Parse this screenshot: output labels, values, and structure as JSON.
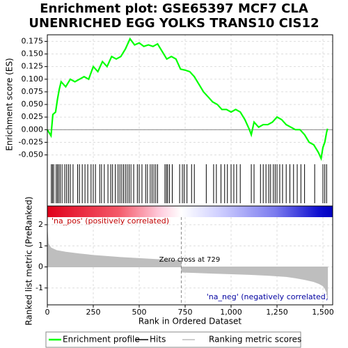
{
  "chart_data": {
    "type": "line",
    "title": [
      "Enrichment plot: GSE65397 MCF7 CLA",
      "UNENRICHED EGG YOLKS TRANS10 CIS12"
    ],
    "xlabel": "Rank in Ordered Dataset",
    "xlim": [
      0,
      1553
    ],
    "xticks": [
      0,
      250,
      500,
      750,
      {
        "value": 1000,
        "label": "1,000"
      },
      {
        "value": 1250,
        "label": "1,250"
      },
      {
        "value": 1500,
        "label": "1,500"
      }
    ],
    "grid": true,
    "es": {
      "ylabel": "Enrichment score (ES)",
      "ylim": [
        -0.063,
        0.188
      ],
      "yticks": [
        {
          "value": 0.175,
          "label": "0.175"
        },
        {
          "value": 0.15,
          "label": "0.150"
        },
        {
          "value": 0.125,
          "label": "0.125"
        },
        {
          "value": 0.1,
          "label": "0.100"
        },
        {
          "value": 0.075,
          "label": "0.075"
        },
        {
          "value": 0.05,
          "label": "0.050"
        },
        {
          "value": 0.025,
          "label": "0.025"
        },
        {
          "value": 0,
          "label": "0.000"
        },
        {
          "value": -0.025,
          "label": "-0.025"
        },
        {
          "value": -0.05,
          "label": "-0.050"
        }
      ],
      "color": "#00ff00",
      "x": [
        0,
        20,
        30,
        45,
        55,
        65,
        75,
        100,
        125,
        150,
        175,
        200,
        225,
        250,
        275,
        300,
        325,
        350,
        375,
        400,
        425,
        450,
        475,
        500,
        525,
        550,
        575,
        600,
        625,
        650,
        675,
        700,
        725,
        750,
        775,
        800,
        850,
        875,
        900,
        925,
        950,
        975,
        1000,
        1025,
        1050,
        1075,
        1100,
        1110,
        1125,
        1150,
        1175,
        1200,
        1225,
        1250,
        1275,
        1300,
        1325,
        1350,
        1375,
        1400,
        1425,
        1450,
        1475,
        1490,
        1500,
        1510,
        1520,
        1525
      ],
      "values": [
        0,
        -0.012,
        0.03,
        0.035,
        0.06,
        0.08,
        0.095,
        0.085,
        0.1,
        0.095,
        0.1,
        0.105,
        0.1,
        0.125,
        0.115,
        0.135,
        0.125,
        0.145,
        0.14,
        0.145,
        0.16,
        0.18,
        0.168,
        0.172,
        0.165,
        0.168,
        0.165,
        0.17,
        0.155,
        0.14,
        0.145,
        0.14,
        0.12,
        0.118,
        0.115,
        0.105,
        0.075,
        0.065,
        0.055,
        0.05,
        0.04,
        0.04,
        0.035,
        0.04,
        0.035,
        0.02,
        0.0,
        -0.01,
        0.015,
        0.005,
        0.01,
        0.01,
        0.015,
        0.025,
        0.02,
        0.01,
        0.005,
        0.0,
        0.0,
        -0.01,
        -0.025,
        -0.03,
        -0.045,
        -0.057,
        -0.035,
        -0.025,
        -0.005,
        0.002
      ]
    },
    "hits": [
      22,
      28,
      35,
      48,
      55,
      62,
      70,
      80,
      95,
      105,
      115,
      125,
      140,
      165,
      175,
      190,
      205,
      220,
      238,
      250,
      262,
      285,
      295,
      310,
      330,
      345,
      355,
      370,
      385,
      395,
      405,
      415,
      425,
      435,
      445,
      455,
      470,
      490,
      500,
      515,
      535,
      545,
      560,
      570,
      580,
      590,
      600,
      640,
      648,
      655,
      665,
      680,
      720,
      735,
      745,
      760,
      785,
      800,
      865,
      905,
      920,
      945,
      965,
      980,
      1000,
      1015,
      1030,
      1050,
      1110,
      1125,
      1160,
      1175,
      1190,
      1205,
      1215,
      1230,
      1240,
      1250,
      1265,
      1280,
      1300,
      1320,
      1340,
      1360,
      1380,
      1400,
      1455,
      1500,
      1510,
      1520
    ],
    "metric": {
      "ylabel": "Ranked list metric (PreRanked)",
      "ylim": [
        -1.8,
        2.36
      ],
      "yticks": [
        2,
        1,
        0,
        -1
      ],
      "color": "#bebebe",
      "x": [
        0,
        5,
        20,
        50,
        100,
        175,
        250,
        325,
        400,
        500,
        600,
        728,
        730,
        800,
        900,
        1000,
        1100,
        1200,
        1300,
        1350,
        1400,
        1450,
        1480,
        1500,
        1510,
        1520,
        1525
      ],
      "values": [
        1.7,
        1.1,
        0.9,
        0.78,
        0.7,
        0.62,
        0.55,
        0.5,
        0.45,
        0.4,
        0.35,
        0.3,
        -0.25,
        -0.27,
        -0.3,
        -0.33,
        -0.36,
        -0.4,
        -0.46,
        -0.52,
        -0.6,
        -0.7,
        -0.8,
        -0.9,
        -1.0,
        -1.2,
        -1.5
      ],
      "zero_cross": 729,
      "annotation": "Zero cross at 729",
      "pos_label": "'na_pos' (positively correlated)",
      "neg_label": "'na_neg' (negatively correlated)"
    },
    "legend": [
      {
        "name": "Enrichment profile",
        "color": "#00ff00"
      },
      {
        "name": "Hits",
        "color": "#000000"
      },
      {
        "name": "Ranking metric scores",
        "color": "#bebebe"
      }
    ]
  }
}
